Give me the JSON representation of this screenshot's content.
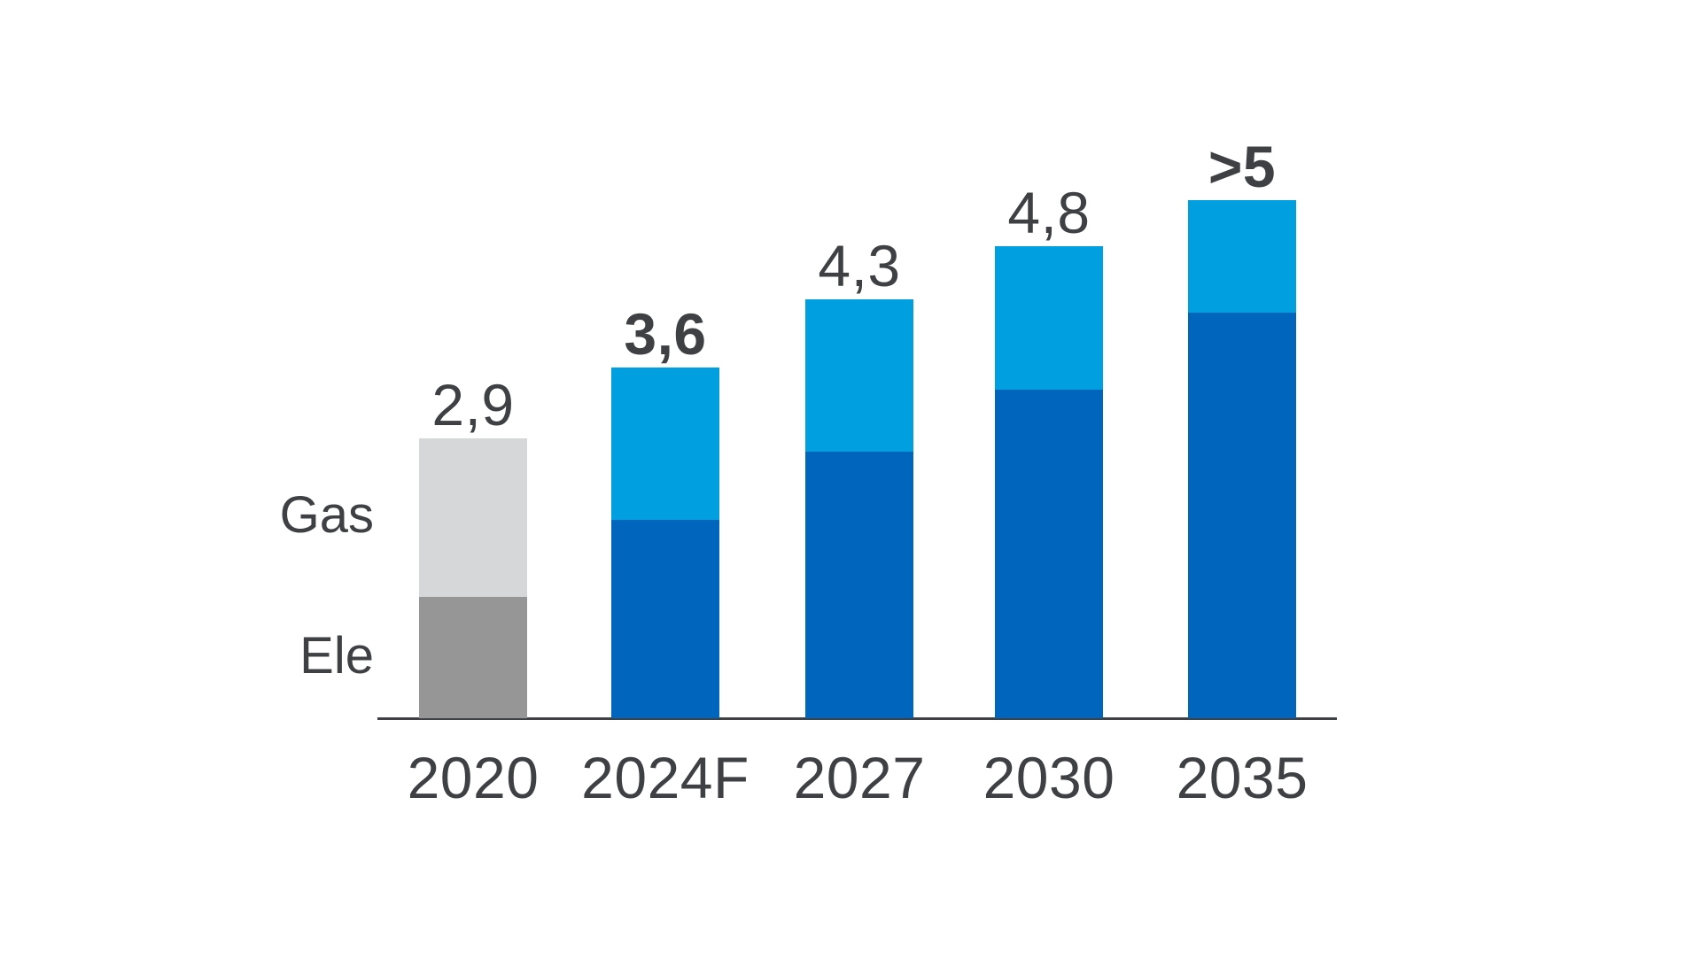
{
  "chart_data": {
    "type": "bar",
    "stacked": true,
    "categories": [
      "2020",
      "2024F",
      "2027",
      "2030",
      "2035"
    ],
    "series": [
      {
        "name": "Ele",
        "values": [
          1.25,
          2.04,
          2.74,
          3.37,
          4.16
        ]
      },
      {
        "name": "Gas",
        "values": [
          1.62,
          1.56,
          1.56,
          1.48,
          1.16
        ]
      }
    ],
    "total_labels": [
      "2,9",
      "3,6",
      "4,3",
      "4,8",
      ">5"
    ],
    "total_label_bold": [
      false,
      true,
      false,
      false,
      true
    ],
    "side_labels": {
      "gas": "Gas",
      "ele": "Ele"
    },
    "ylim": [
      0,
      5.5
    ],
    "grid": false,
    "legend_position": "left-of-first-bar",
    "decimal_separator": ",",
    "bar_palette": [
      {
        "top": "#d6d7d8",
        "bottom": "#969697"
      },
      {
        "top": "#009fdf",
        "bottom": "#0066bd"
      },
      {
        "top": "#009fdf",
        "bottom": "#0066bd"
      },
      {
        "top": "#009fdf",
        "bottom": "#0066bd"
      },
      {
        "top": "#009fdf",
        "bottom": "#0066bd"
      }
    ],
    "colors": {
      "text": "#3e4043",
      "axis": "#3e4245",
      "gas_forecast": "#009fdf",
      "ele_forecast": "#0066bd",
      "gas_2020": "#d6d7d8",
      "ele_2020": "#969697"
    }
  }
}
